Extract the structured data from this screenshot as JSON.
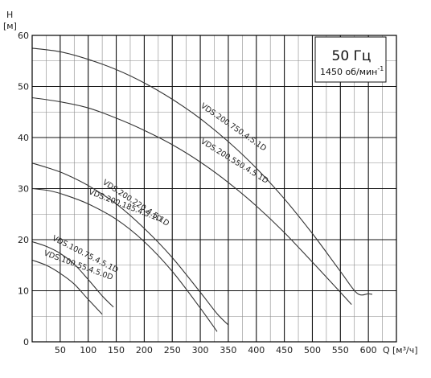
{
  "chart_data": {
    "type": "line",
    "title": "",
    "xlabel": "Q",
    "xunit": "[м³/ч]",
    "ylabel": "H",
    "yunit": "[м]",
    "xlim": [
      0,
      650
    ],
    "ylim": [
      0,
      60
    ],
    "x_ticks": [
      50,
      100,
      150,
      200,
      250,
      300,
      350,
      400,
      450,
      500,
      550,
      600
    ],
    "y_ticks": [
      0,
      10,
      20,
      30,
      40,
      50,
      60
    ],
    "minor_x_step": 25,
    "minor_y_step": 5,
    "grid": true,
    "info_box": {
      "frequency": "50 Гц",
      "speed": "1450 об/мин",
      "speed_sup": "-1"
    },
    "series": [
      {
        "name": "VDS.200.750.4.5.1D",
        "x": [
          0,
          50,
          100,
          150,
          200,
          250,
          300,
          350,
          400,
          450,
          500,
          550,
          580,
          600,
          607
        ],
        "y": [
          57.5,
          56.8,
          55.3,
          53.3,
          50.7,
          47.5,
          43.7,
          39.2,
          34.0,
          28.0,
          21.2,
          13.8,
          9.5,
          9.4,
          9.3
        ],
        "label_at": [
          300,
          46
        ]
      },
      {
        "name": "VDS.200.550.4.5.1D",
        "x": [
          0,
          50,
          100,
          150,
          200,
          250,
          300,
          350,
          400,
          450,
          500,
          550,
          570
        ],
        "y": [
          47.8,
          47.0,
          45.8,
          43.8,
          41.4,
          38.6,
          35.2,
          31.2,
          26.6,
          21.4,
          15.6,
          9.7,
          7.3
        ],
        "label_at": [
          300,
          39
        ]
      },
      {
        "name": "VDS.200.220.4.5.1D",
        "x": [
          0,
          30,
          60,
          100,
          150,
          200,
          250,
          300,
          330,
          350
        ],
        "y": [
          35.0,
          34.0,
          32.8,
          30.6,
          27.0,
          22.2,
          16.5,
          9.7,
          5.5,
          3.3
        ],
        "label_at": [
          125,
          31
        ]
      },
      {
        "name": "VDS.200.185.4.5.1D",
        "x": [
          0,
          30,
          60,
          100,
          150,
          200,
          250,
          300,
          330
        ],
        "y": [
          30.0,
          29.6,
          28.7,
          27.0,
          24.0,
          19.6,
          13.8,
          6.6,
          2.0
        ],
        "label_at": [
          100,
          29
        ]
      },
      {
        "name": "VDS.100.75.4.5.1D",
        "x": [
          0,
          25,
          50,
          75,
          100,
          125,
          145
        ],
        "y": [
          19.6,
          18.7,
          17.3,
          15.2,
          12.2,
          9.0,
          6.8
        ],
        "label_at": [
          35,
          20
        ]
      },
      {
        "name": "VDS.100.55.4.5.0D",
        "x": [
          0,
          25,
          50,
          75,
          100,
          125
        ],
        "y": [
          16.0,
          15.0,
          13.4,
          11.3,
          8.3,
          5.4
        ],
        "label_at": [
          20,
          17
        ]
      }
    ]
  }
}
